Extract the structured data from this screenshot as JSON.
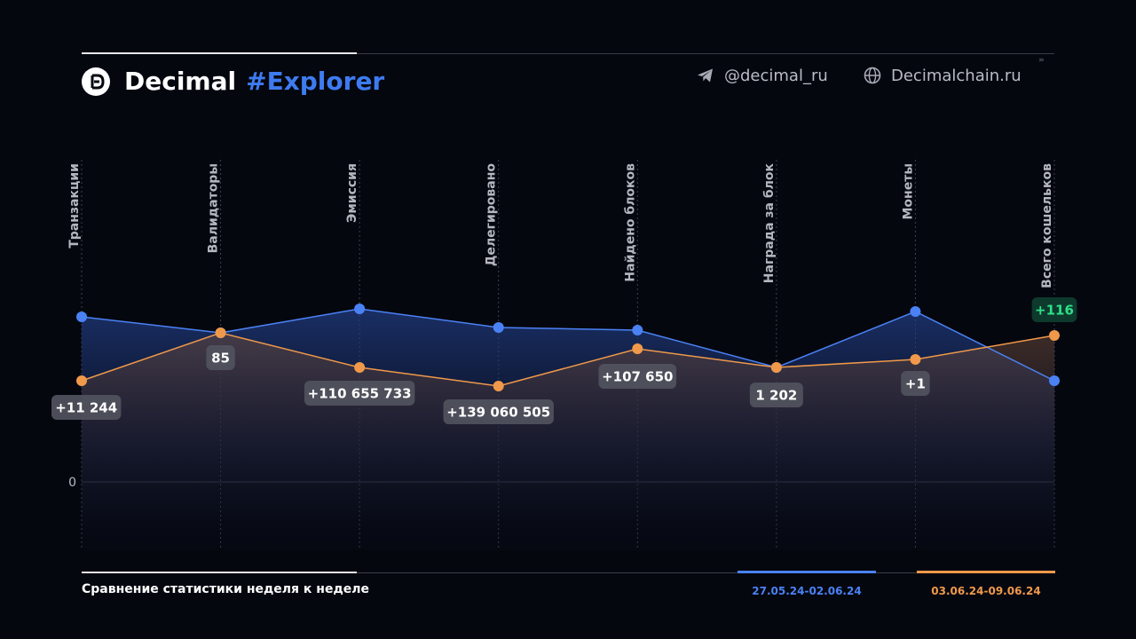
{
  "header": {
    "brand_name": "Decimal",
    "brand_tag": "#Explorer",
    "telegram": "@decimal_ru",
    "website": "Decimalchain.ru"
  },
  "icons": {
    "logo": "decimal-logo-icon",
    "telegram": "telegram-plane-icon",
    "website": "globe-icon",
    "decor": "chevrons-right-icon"
  },
  "colors": {
    "accent_blue": "#4a82f5",
    "accent_orange": "#f0994a",
    "positive_badge": "#2ee08a",
    "background": "#05070f"
  },
  "footer": {
    "caption": "Сравнение статистики неделя к неделе",
    "legend_a": "27.05.24-02.06.24",
    "legend_b": "03.06.24-09.06.24"
  },
  "chart_data": {
    "type": "line",
    "title": "",
    "categories": [
      "Транзакции",
      "Валидаторы",
      "Эмиссия",
      "Делегировано",
      "Найдено блоков",
      "Награда за блок",
      "Монеты",
      "Всего кошельков"
    ],
    "y_tick_labels": [
      "0"
    ],
    "y_range": [
      0,
      100
    ],
    "note": "relative normalized scale; only zero baseline labeled",
    "series": [
      {
        "name": "27.05.24-02.06.24",
        "color": "#4a82f5",
        "values": [
          62,
          56,
          65,
          58,
          57,
          43,
          64,
          38
        ]
      },
      {
        "name": "03.06.24-09.06.24",
        "color": "#f0994a",
        "values": [
          38,
          56,
          43,
          36,
          50,
          43,
          46,
          55
        ]
      }
    ],
    "data_labels": [
      "+11 244",
      "85",
      "+110 655 733",
      "+139 060 505",
      "+107 650",
      "1 202",
      "+1",
      "+116"
    ],
    "highlight_label_index": 7,
    "grid": "vertical dotted per category",
    "legend_placement": "bottom-right"
  }
}
